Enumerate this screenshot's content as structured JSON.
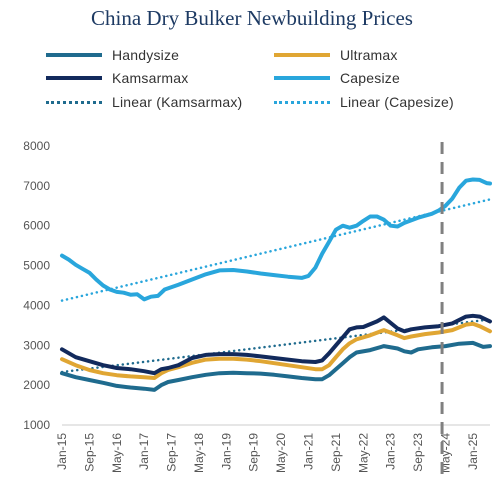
{
  "chart_data": {
    "type": "line",
    "title": "China Dry Bulker Newbuilding Prices",
    "xlabel": "",
    "ylabel": "",
    "ylim": [
      1000,
      8000
    ],
    "yticks": [
      "1000",
      "2000",
      "3000",
      "4000",
      "5000",
      "6000",
      "7000",
      "8000"
    ],
    "x_tick_labels": [
      "Jan-15",
      "Sep-15",
      "May-16",
      "Jan-17",
      "Sep-17",
      "May-18",
      "Jan-19",
      "Sep-19",
      "May-20",
      "Jan-21",
      "Sep-21",
      "May-22",
      "Jan-23",
      "Sep-23",
      "May-24",
      "Jan-25"
    ],
    "x_range_months": [
      0,
      125
    ],
    "vertical_marker": {
      "month": 111,
      "style": "dashed",
      "color": "#808080"
    },
    "grid": false,
    "legend_placement": "top",
    "series": [
      {
        "name": "Handysize",
        "color": "#1f6b8e",
        "style": "solid",
        "points": [
          [
            0,
            2300
          ],
          [
            4,
            2200
          ],
          [
            8,
            2130
          ],
          [
            12,
            2060
          ],
          [
            16,
            1980
          ],
          [
            20,
            1940
          ],
          [
            24,
            1910
          ],
          [
            27,
            1880
          ],
          [
            29,
            2000
          ],
          [
            31,
            2080
          ],
          [
            34,
            2130
          ],
          [
            38,
            2200
          ],
          [
            42,
            2260
          ],
          [
            46,
            2300
          ],
          [
            50,
            2310
          ],
          [
            54,
            2300
          ],
          [
            58,
            2290
          ],
          [
            62,
            2260
          ],
          [
            66,
            2220
          ],
          [
            70,
            2180
          ],
          [
            74,
            2150
          ],
          [
            76,
            2150
          ],
          [
            78,
            2250
          ],
          [
            80,
            2400
          ],
          [
            82,
            2550
          ],
          [
            84,
            2700
          ],
          [
            86,
            2820
          ],
          [
            90,
            2880
          ],
          [
            94,
            2980
          ],
          [
            98,
            2920
          ],
          [
            100,
            2850
          ],
          [
            102,
            2820
          ],
          [
            104,
            2900
          ],
          [
            108,
            2950
          ],
          [
            112,
            2980
          ],
          [
            116,
            3040
          ],
          [
            120,
            3060
          ],
          [
            123,
            2960
          ],
          [
            125,
            2980
          ]
        ]
      },
      {
        "name": "Ultramax",
        "color": "#e0a633",
        "style": "solid",
        "points": [
          [
            0,
            2650
          ],
          [
            4,
            2500
          ],
          [
            8,
            2380
          ],
          [
            12,
            2300
          ],
          [
            16,
            2250
          ],
          [
            20,
            2220
          ],
          [
            24,
            2200
          ],
          [
            27,
            2180
          ],
          [
            29,
            2300
          ],
          [
            31,
            2380
          ],
          [
            34,
            2450
          ],
          [
            38,
            2560
          ],
          [
            42,
            2640
          ],
          [
            46,
            2660
          ],
          [
            50,
            2660
          ],
          [
            54,
            2640
          ],
          [
            58,
            2600
          ],
          [
            62,
            2550
          ],
          [
            66,
            2500
          ],
          [
            70,
            2450
          ],
          [
            74,
            2400
          ],
          [
            76,
            2400
          ],
          [
            78,
            2500
          ],
          [
            80,
            2700
          ],
          [
            82,
            2900
          ],
          [
            84,
            3050
          ],
          [
            86,
            3150
          ],
          [
            90,
            3250
          ],
          [
            94,
            3380
          ],
          [
            98,
            3250
          ],
          [
            100,
            3180
          ],
          [
            102,
            3220
          ],
          [
            106,
            3280
          ],
          [
            110,
            3320
          ],
          [
            114,
            3380
          ],
          [
            118,
            3520
          ],
          [
            120,
            3540
          ],
          [
            122,
            3480
          ],
          [
            125,
            3350
          ]
        ]
      },
      {
        "name": "Kamsarmax",
        "color": "#122a5c",
        "style": "solid",
        "points": [
          [
            0,
            2900
          ],
          [
            4,
            2700
          ],
          [
            8,
            2600
          ],
          [
            12,
            2500
          ],
          [
            16,
            2430
          ],
          [
            20,
            2400
          ],
          [
            24,
            2350
          ],
          [
            27,
            2300
          ],
          [
            29,
            2400
          ],
          [
            31,
            2430
          ],
          [
            34,
            2500
          ],
          [
            38,
            2680
          ],
          [
            42,
            2760
          ],
          [
            46,
            2780
          ],
          [
            50,
            2780
          ],
          [
            54,
            2760
          ],
          [
            58,
            2720
          ],
          [
            62,
            2680
          ],
          [
            66,
            2640
          ],
          [
            70,
            2600
          ],
          [
            74,
            2580
          ],
          [
            76,
            2620
          ],
          [
            78,
            2800
          ],
          [
            80,
            3000
          ],
          [
            82,
            3200
          ],
          [
            84,
            3400
          ],
          [
            86,
            3450
          ],
          [
            88,
            3460
          ],
          [
            92,
            3600
          ],
          [
            94,
            3700
          ],
          [
            98,
            3420
          ],
          [
            100,
            3350
          ],
          [
            102,
            3400
          ],
          [
            106,
            3450
          ],
          [
            110,
            3480
          ],
          [
            114,
            3550
          ],
          [
            118,
            3720
          ],
          [
            120,
            3740
          ],
          [
            122,
            3720
          ],
          [
            125,
            3600
          ]
        ]
      },
      {
        "name": "Capesize",
        "color": "#29a6dc",
        "style": "solid",
        "points": [
          [
            0,
            5250
          ],
          [
            2,
            5150
          ],
          [
            4,
            5020
          ],
          [
            6,
            4920
          ],
          [
            8,
            4820
          ],
          [
            10,
            4650
          ],
          [
            12,
            4500
          ],
          [
            14,
            4400
          ],
          [
            16,
            4340
          ],
          [
            18,
            4320
          ],
          [
            20,
            4270
          ],
          [
            22,
            4280
          ],
          [
            24,
            4150
          ],
          [
            26,
            4220
          ],
          [
            28,
            4240
          ],
          [
            30,
            4400
          ],
          [
            34,
            4520
          ],
          [
            38,
            4650
          ],
          [
            42,
            4780
          ],
          [
            46,
            4880
          ],
          [
            50,
            4890
          ],
          [
            54,
            4850
          ],
          [
            58,
            4800
          ],
          [
            62,
            4760
          ],
          [
            66,
            4720
          ],
          [
            70,
            4690
          ],
          [
            72,
            4740
          ],
          [
            74,
            4950
          ],
          [
            76,
            5300
          ],
          [
            78,
            5600
          ],
          [
            80,
            5900
          ],
          [
            82,
            6000
          ],
          [
            84,
            5950
          ],
          [
            86,
            6000
          ],
          [
            88,
            6120
          ],
          [
            90,
            6230
          ],
          [
            92,
            6230
          ],
          [
            94,
            6150
          ],
          [
            96,
            6000
          ],
          [
            98,
            5980
          ],
          [
            100,
            6070
          ],
          [
            104,
            6200
          ],
          [
            108,
            6300
          ],
          [
            110,
            6380
          ],
          [
            112,
            6500
          ],
          [
            114,
            6680
          ],
          [
            116,
            6950
          ],
          [
            118,
            7130
          ],
          [
            120,
            7160
          ],
          [
            122,
            7150
          ],
          [
            124,
            7070
          ],
          [
            125,
            7060
          ]
        ]
      },
      {
        "name": "Linear (Kamsarmax)",
        "color": "#1f6b8e",
        "style": "dotted",
        "points": [
          [
            0,
            2330
          ],
          [
            125,
            3650
          ]
        ]
      },
      {
        "name": "Linear (Capesize)",
        "color": "#29a6dc",
        "style": "dotted",
        "points": [
          [
            0,
            4120
          ],
          [
            125,
            6660
          ]
        ]
      }
    ]
  }
}
